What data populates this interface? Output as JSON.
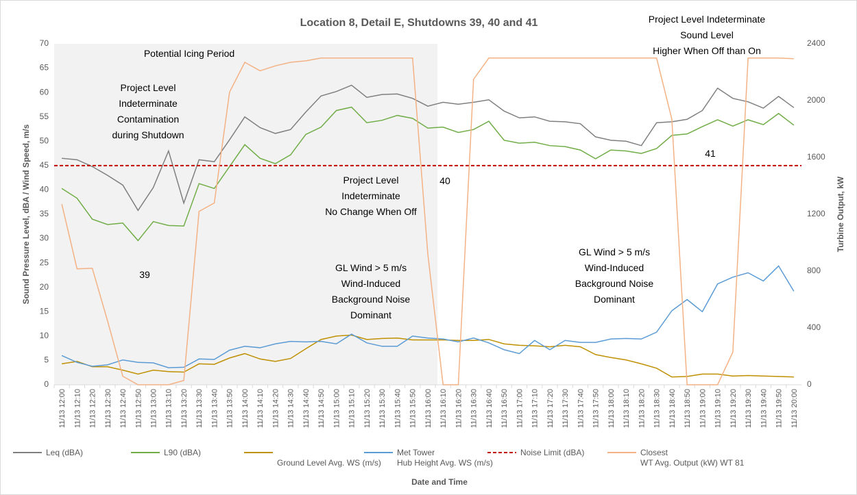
{
  "chart_data": {
    "type": "line",
    "title": "Location 8, Detail E, Shutdowns 39, 40 and 41",
    "x_label": "Date and Time",
    "y_label": "Sound Pressure Level, dBA / Wind Speed, m/s",
    "y2_label": "Turbine Output, kW",
    "categories": [
      "11/13 12:00",
      "11/13 12:10",
      "11/13 12:20",
      "11/13 12:30",
      "11/13 12:40",
      "11/13 12:50",
      "11/13 13:00",
      "11/13 13:10",
      "11/13 13:20",
      "11/13 13:30",
      "11/13 13:40",
      "11/13 13:50",
      "11/13 14:00",
      "11/13 14:10",
      "11/13 14:20",
      "11/13 14:30",
      "11/13 14:40",
      "11/13 14:50",
      "11/13 15:00",
      "11/13 15:10",
      "11/13 15:20",
      "11/13 15:30",
      "11/13 15:40",
      "11/13 15:50",
      "11/13 16:00",
      "11/13 16:10",
      "11/13 16:20",
      "11/13 16:30",
      "11/13 16:40",
      "11/13 16:50",
      "11/13 17:00",
      "11/13 17:10",
      "11/13 17:20",
      "11/13 17:30",
      "11/13 17:40",
      "11/13 17:50",
      "11/13 18:00",
      "11/13 18:10",
      "11/13 18:20",
      "11/13 18:30",
      "11/13 18:40",
      "11/13 18:50",
      "11/13 19:00",
      "11/13 19:10",
      "11/13 19:20",
      "11/13 19:30",
      "11/13 19:40",
      "11/13 19:50",
      "11/13 20:00"
    ],
    "ylim": [
      0,
      70
    ],
    "yticks": [
      0,
      5,
      10,
      15,
      20,
      25,
      30,
      35,
      40,
      45,
      50,
      55,
      60,
      65,
      70
    ],
    "y2lim": [
      0,
      2400
    ],
    "y2ticks": [
      0,
      400,
      800,
      1200,
      1600,
      2000,
      2400
    ],
    "series": [
      {
        "name": "Leq (dBA)",
        "color": "#7f7f7f",
        "values": [
          46.5,
          46.2,
          44.8,
          43,
          41,
          35.8,
          40.5,
          48,
          37.3,
          46.2,
          45.8,
          50.3,
          55,
          52.8,
          51.6,
          52.4,
          56,
          59.3,
          60.2,
          61.5,
          59,
          59.6,
          59.7,
          58.8,
          57.2,
          58,
          57.6,
          58,
          58.5,
          56.2,
          54.8,
          55,
          54.1,
          54,
          53.6,
          50.9,
          50.2,
          50,
          49.1,
          53.8,
          54,
          54.5,
          56.3,
          60.9,
          58.8,
          58.1,
          56.8,
          59.2,
          56.9
        ]
      },
      {
        "name": "L90 (dBA)",
        "color": "#70ad47",
        "values": [
          40.3,
          38.3,
          34,
          32.9,
          33.2,
          29.6,
          33.5,
          32.7,
          32.6,
          41.3,
          40.3,
          44.8,
          49.3,
          46.5,
          45.4,
          47.2,
          51.4,
          52.9,
          56.3,
          57,
          53.8,
          54.3,
          55.3,
          54.7,
          52.7,
          52.9,
          51.8,
          52.4,
          54.1,
          50.2,
          49.6,
          49.8,
          49.1,
          48.9,
          48.2,
          46.4,
          48.2,
          48,
          47.5,
          48.5,
          51.2,
          51.5,
          53,
          54.4,
          53.1,
          54.4,
          53.4,
          55.7,
          53.3
        ]
      },
      {
        "name": "\nGround Level Avg. WS (m/s)",
        "color": "#bf9000",
        "values": [
          4.3,
          4.8,
          3.7,
          3.7,
          3,
          2.2,
          3,
          2.7,
          2.6,
          4.3,
          4.2,
          5.5,
          6.4,
          5.3,
          4.8,
          5.4,
          7.4,
          9.3,
          10,
          10.2,
          9.3,
          9.5,
          9.6,
          9.2,
          9.2,
          9.2,
          9.1,
          9.1,
          9.3,
          8.4,
          8.1,
          8,
          7.8,
          8.1,
          7.8,
          6.2,
          5.6,
          5.1,
          4.3,
          3.4,
          1.6,
          1.7,
          2.2,
          2.2,
          1.8,
          1.9,
          1.8,
          1.7,
          1.6
        ]
      },
      {
        "name": "Met Tower\nHub Height Avg. WS (m/s)",
        "color": "#5b9bd5",
        "values": [
          6,
          4.6,
          3.8,
          4.1,
          5.1,
          4.6,
          4.5,
          3.5,
          3.6,
          5.3,
          5.2,
          7.1,
          7.9,
          7.6,
          8.4,
          8.9,
          8.8,
          8.9,
          8.4,
          10.4,
          8.6,
          7.9,
          7.9,
          10,
          9.6,
          9.4,
          8.8,
          9.6,
          8.6,
          7.2,
          6.4,
          9.1,
          7.2,
          9.1,
          8.7,
          8.7,
          9.4,
          9.5,
          9.4,
          10.8,
          15.2,
          17.5,
          15,
          20.7,
          22.1,
          23,
          21.3,
          24.4,
          19.2
        ]
      },
      {
        "name": "Noise Limit (dBA)",
        "color": "#c00000",
        "value": 45,
        "dashed": true
      },
      {
        "name": "Closest\nWT Avg. Output (kW) WT 81",
        "color": "#f4b183",
        "axis": "y2",
        "values": [
          1272,
          816,
          820,
          450,
          60,
          0,
          0,
          0,
          30,
          1220,
          1280,
          2060,
          2270,
          2210,
          2245,
          2270,
          2280,
          2300,
          2300,
          2300,
          2300,
          2300,
          2300,
          2300,
          920,
          0,
          0,
          2150,
          2300,
          2300,
          2300,
          2300,
          2300,
          2300,
          2300,
          2300,
          2300,
          2300,
          2300,
          2300,
          1870,
          0,
          0,
          0,
          230,
          2300,
          2300,
          2300,
          2295
        ]
      }
    ],
    "annotations": [
      "Potential Icing Period",
      "Project Level\nIndeterminate\nContamination\nduring Shutdown",
      "Project Level\nIndeterminate\nNo Change When Off",
      "40",
      "41",
      "39",
      "GL Wind > 5 m/s\nWind-Induced\nBackground Noise\nDominant",
      "GL Wind > 5 m/s\nWind-Induced\nBackground Noise\nDominant",
      "Project Level Indeterminate\nSound Level\nHigher When Off than On"
    ]
  }
}
